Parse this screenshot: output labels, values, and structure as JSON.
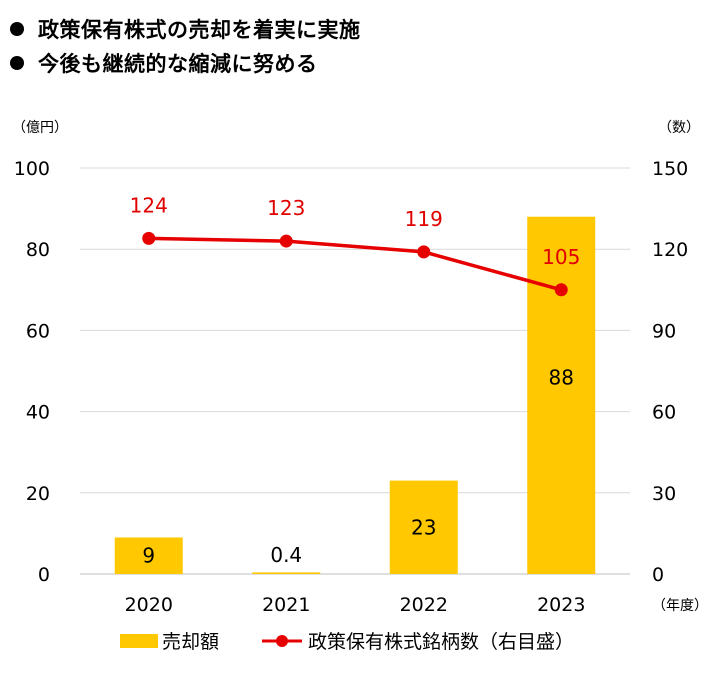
{
  "headline": {
    "items": [
      "政策保有株式の売却を着実に実施",
      "今後も継続的な縮減に努める"
    ]
  },
  "units": {
    "left": "（億円）",
    "right": "（数）",
    "x": "（年度）"
  },
  "colors": {
    "bar": "#FFC800",
    "line": "#E60000",
    "line_label": "#E60000",
    "gridline": "#D9D9D9"
  },
  "chart_data": {
    "type": "bar",
    "categories": [
      "2020",
      "2021",
      "2022",
      "2023"
    ],
    "series": [
      {
        "name": "売却額",
        "type": "bar",
        "axis": "left",
        "values": [
          9,
          0.4,
          23,
          88
        ],
        "labels": [
          "9",
          "0.4",
          "23",
          "88"
        ]
      },
      {
        "name": "政策保有株式銘柄数（右目盛）",
        "type": "line",
        "axis": "right",
        "values": [
          124,
          123,
          119,
          105
        ],
        "labels": [
          "124",
          "123",
          "119",
          "105"
        ]
      }
    ],
    "y_left": {
      "ylim": [
        0,
        100
      ],
      "ticks": [
        "0",
        "20",
        "40",
        "60",
        "80",
        "100"
      ]
    },
    "y_right": {
      "ylim": [
        0,
        150
      ],
      "ticks": [
        "0",
        "30",
        "60",
        "90",
        "120",
        "150"
      ]
    },
    "grid": true,
    "legend": "bottom"
  }
}
